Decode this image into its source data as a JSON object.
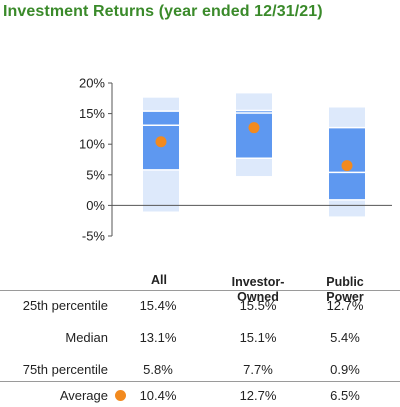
{
  "title": "Investment Returns (year ended 12/31/21)",
  "colors": {
    "title": "#3a8a2a",
    "band_outer": "#dde9fb",
    "band_inner": "#5e98f0",
    "median_line": "#ffffff",
    "average_dot": "#f28a1f"
  },
  "chart_data": {
    "type": "box",
    "categories": [
      "All",
      "Investor-Owned",
      "Public Power"
    ],
    "y_ticks": [
      "20%",
      "15%",
      "10%",
      "5%",
      "0%",
      "-5%"
    ],
    "ylim": [
      -5,
      20
    ],
    "series": [
      {
        "name": "25th percentile",
        "values": [
          15.4,
          15.5,
          12.7
        ]
      },
      {
        "name": "Median",
        "values": [
          13.1,
          15.1,
          5.4
        ]
      },
      {
        "name": "75th percentile",
        "values": [
          5.8,
          7.7,
          0.9
        ]
      },
      {
        "name": "Average",
        "values": [
          10.4,
          12.7,
          6.5
        ]
      }
    ],
    "range_low": [
      -1.0,
      4.8,
      -1.8
    ],
    "range_high": [
      17.6,
      18.3,
      16.0
    ]
  },
  "table": {
    "headers": [
      "All",
      "Investor-\nOwned",
      "Public\nPower"
    ],
    "rows": [
      {
        "label": "25th percentile",
        "values": [
          "15.4%",
          "15.5%",
          "12.7%"
        ]
      },
      {
        "label": "Median",
        "values": [
          "13.1%",
          "15.1%",
          "5.4%"
        ]
      },
      {
        "label": "75th percentile",
        "values": [
          "5.8%",
          "7.7%",
          "0.9%"
        ]
      },
      {
        "label": "Average",
        "values": [
          "10.4%",
          "12.7%",
          "6.5%"
        ]
      }
    ]
  }
}
